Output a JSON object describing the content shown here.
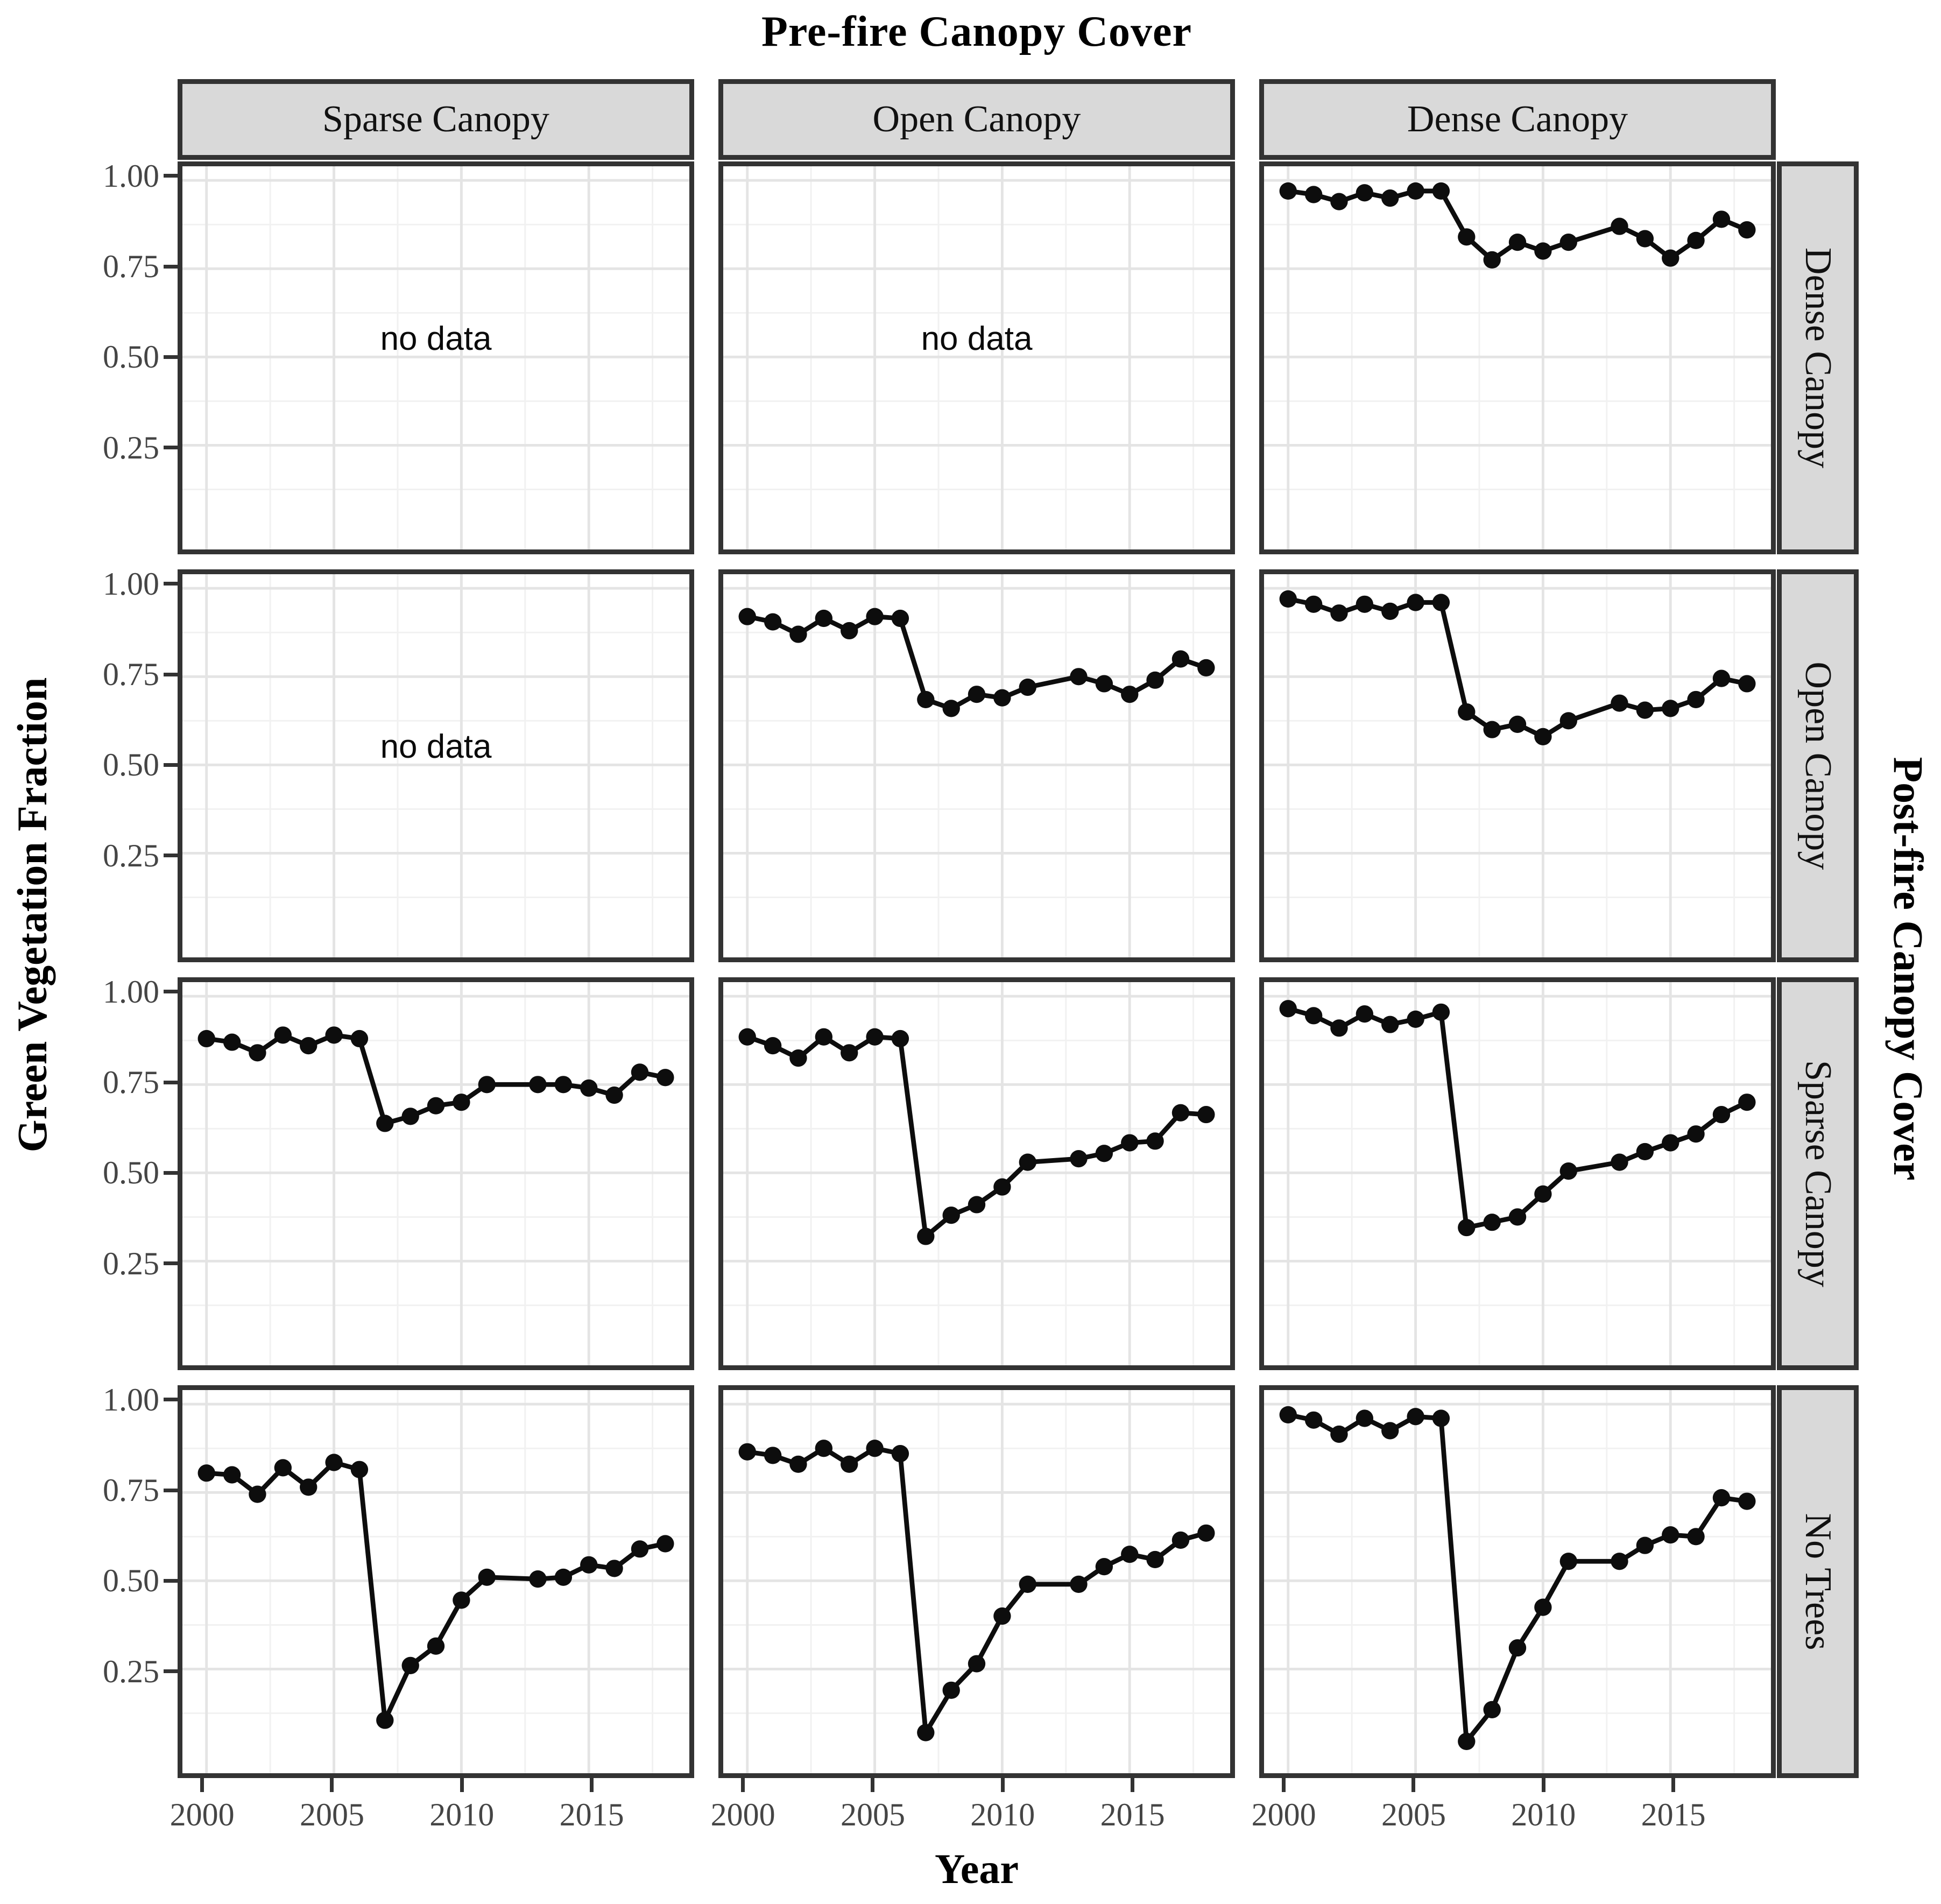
{
  "chart_data": {
    "type": "line",
    "title": "Pre-fire Canopy Cover",
    "right_title": "Post-fire Canopy Cover",
    "xlabel": "Year",
    "ylabel": "Green Vegetation Fraction",
    "no_data_label": "no data",
    "legend": "none",
    "grid": "major+minor",
    "facet_col_labels": [
      "Sparse Canopy",
      "Open Canopy",
      "Dense Canopy"
    ],
    "facet_row_labels": [
      "Dense Canopy",
      "Open Canopy",
      "Sparse Canopy",
      "No Trees"
    ],
    "x_tick_labels": [
      "2000",
      "2005",
      "2010",
      "2015"
    ],
    "x_tick_values": [
      2000,
      2005,
      2010,
      2015
    ],
    "y_tick_labels": [
      "1.00",
      "0.75",
      "0.50",
      "0.25"
    ],
    "y_tick_values": [
      1.0,
      0.75,
      0.5,
      0.25
    ],
    "x_minor_values": [
      2002.5,
      2007.5,
      2012.5,
      2017.5
    ],
    "y_minor_values": [
      0.875,
      0.625,
      0.375,
      0.125
    ],
    "xlim_displayed": [
      2000,
      2018
    ],
    "ylim": [
      0,
      1
    ],
    "years": [
      2000,
      2001,
      2002,
      2003,
      2004,
      2005,
      2006,
      2007,
      2008,
      2009,
      2010,
      2011,
      2013,
      2014,
      2015,
      2016,
      2017,
      2018
    ],
    "note_missing_year": 2012,
    "panels": [
      {
        "row": "Dense Canopy",
        "col": "Sparse Canopy",
        "no_data": true,
        "values": null
      },
      {
        "row": "Dense Canopy",
        "col": "Open Canopy",
        "no_data": true,
        "values": null
      },
      {
        "row": "Dense Canopy",
        "col": "Dense Canopy",
        "no_data": false,
        "values": [
          0.97,
          0.96,
          0.94,
          0.965,
          0.95,
          0.97,
          0.97,
          0.84,
          0.775,
          0.825,
          0.8,
          0.825,
          0.87,
          0.835,
          0.78,
          0.83,
          0.89,
          0.86
        ]
      },
      {
        "row": "Open Canopy",
        "col": "Sparse Canopy",
        "no_data": true,
        "values": null
      },
      {
        "row": "Open Canopy",
        "col": "Open Canopy",
        "no_data": false,
        "values": [
          0.92,
          0.905,
          0.87,
          0.915,
          0.88,
          0.92,
          0.915,
          0.685,
          0.66,
          0.7,
          0.69,
          0.72,
          0.75,
          0.73,
          0.7,
          0.74,
          0.8,
          0.775
        ]
      },
      {
        "row": "Open Canopy",
        "col": "Dense Canopy",
        "no_data": false,
        "values": [
          0.97,
          0.955,
          0.93,
          0.955,
          0.935,
          0.96,
          0.96,
          0.65,
          0.6,
          0.615,
          0.58,
          0.625,
          0.675,
          0.655,
          0.66,
          0.685,
          0.745,
          0.73
        ]
      },
      {
        "row": "Sparse Canopy",
        "col": "Sparse Canopy",
        "no_data": false,
        "values": [
          0.88,
          0.87,
          0.84,
          0.89,
          0.86,
          0.89,
          0.88,
          0.64,
          0.66,
          0.69,
          0.7,
          0.75,
          0.75,
          0.75,
          0.74,
          0.72,
          0.785,
          0.77
        ]
      },
      {
        "row": "Sparse Canopy",
        "col": "Open Canopy",
        "no_data": false,
        "values": [
          0.885,
          0.86,
          0.825,
          0.885,
          0.84,
          0.885,
          0.88,
          0.32,
          0.38,
          0.41,
          0.46,
          0.53,
          0.54,
          0.555,
          0.585,
          0.59,
          0.67,
          0.665
        ]
      },
      {
        "row": "Sparse Canopy",
        "col": "Dense Canopy",
        "no_data": false,
        "values": [
          0.965,
          0.945,
          0.91,
          0.95,
          0.92,
          0.935,
          0.955,
          0.345,
          0.36,
          0.375,
          0.44,
          0.505,
          0.53,
          0.56,
          0.585,
          0.61,
          0.665,
          0.7
        ]
      },
      {
        "row": "No Trees",
        "col": "Sparse Canopy",
        "no_data": false,
        "values": [
          0.805,
          0.8,
          0.745,
          0.82,
          0.765,
          0.835,
          0.815,
          0.105,
          0.26,
          0.315,
          0.445,
          0.51,
          0.505,
          0.51,
          0.545,
          0.535,
          0.59,
          0.605
        ]
      },
      {
        "row": "No Trees",
        "col": "Open Canopy",
        "no_data": false,
        "values": [
          0.865,
          0.855,
          0.83,
          0.875,
          0.83,
          0.875,
          0.86,
          0.07,
          0.19,
          0.265,
          0.4,
          0.49,
          0.49,
          0.54,
          0.575,
          0.56,
          0.615,
          0.635
        ]
      },
      {
        "row": "No Trees",
        "col": "Dense Canopy",
        "no_data": false,
        "values": [
          0.97,
          0.955,
          0.915,
          0.96,
          0.925,
          0.965,
          0.96,
          0.045,
          0.135,
          0.31,
          0.425,
          0.555,
          0.555,
          0.6,
          0.63,
          0.625,
          0.735,
          0.725
        ]
      }
    ]
  },
  "styles": {
    "strip_fill": "#d9d9d9",
    "strip_border": "#333333",
    "panel_border": "#333333",
    "grid_major": "#e4e4e4",
    "grid_minor": "#f1f1f1",
    "line_color": "#0d0d0d",
    "point_color": "#0d0d0d",
    "tick_label_color": "#454545",
    "tick_mark_color": "#333333"
  }
}
